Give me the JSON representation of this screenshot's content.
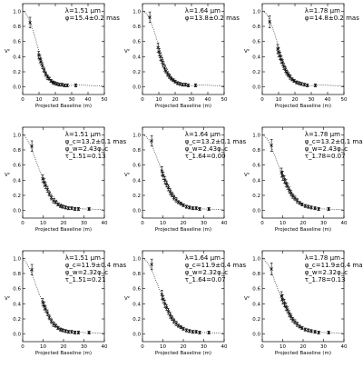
{
  "chart_data": [
    {
      "type": "scatter",
      "legend": [
        "λ=1.51 μm",
        "φ=15.4±0.2 mas"
      ],
      "xlabel": "Projected Baseline (m)",
      "ylabel": "V²",
      "xlim": [
        0,
        50
      ],
      "ylim": [
        -0.1,
        1.1
      ],
      "xticks": [
        0,
        10,
        20,
        30,
        40,
        50
      ],
      "yticks": [
        0.0,
        0.2,
        0.4,
        0.6,
        0.8,
        1.0
      ],
      "x": [
        4.5,
        9.8,
        10.6,
        11.2,
        12.1,
        13.0,
        14.0,
        15.1,
        16.2,
        17.3,
        18.5,
        19.6,
        21.0,
        22.4,
        24.0,
        25.6,
        27.3,
        32.5
      ],
      "y": [
        0.85,
        0.42,
        0.37,
        0.33,
        0.28,
        0.22,
        0.17,
        0.13,
        0.11,
        0.08,
        0.06,
        0.05,
        0.04,
        0.03,
        0.03,
        0.02,
        0.02,
        0.02
      ],
      "yerr": [
        0.07,
        0.05,
        0.05,
        0.04,
        0.04,
        0.03,
        0.03,
        0.03,
        0.02,
        0.02,
        0.02,
        0.02,
        0.02,
        0.02,
        0.02,
        0.02,
        0.02,
        0.02
      ],
      "model_x": [
        0,
        2,
        4,
        6,
        8,
        10,
        12,
        14,
        16,
        18,
        20,
        22,
        24,
        26,
        28,
        30,
        33,
        36,
        40,
        44,
        48,
        50
      ],
      "model_y": [
        1.0,
        0.97,
        0.89,
        0.77,
        0.62,
        0.47,
        0.33,
        0.21,
        0.12,
        0.06,
        0.03,
        0.015,
        0.01,
        0.012,
        0.016,
        0.02,
        0.024,
        0.024,
        0.02,
        0.016,
        0.012,
        0.011
      ]
    },
    {
      "type": "scatter",
      "legend": [
        "λ=1.64 μm",
        "φ=13.8±0.2 mas"
      ],
      "xlabel": "Projected Baseline (m)",
      "ylabel": "V²",
      "xlim": [
        0,
        50
      ],
      "ylim": [
        -0.1,
        1.1
      ],
      "xticks": [
        0,
        10,
        20,
        30,
        40,
        50
      ],
      "yticks": [
        0.0,
        0.2,
        0.4,
        0.6,
        0.8,
        1.0
      ],
      "x": [
        4.5,
        9.5,
        10.2,
        11.0,
        11.8,
        12.6,
        13.5,
        14.4,
        15.4,
        16.5,
        17.6,
        18.8,
        20.0,
        21.5,
        23.0,
        24.6,
        26.3,
        28.0,
        32.5
      ],
      "y": [
        0.92,
        0.52,
        0.46,
        0.4,
        0.35,
        0.3,
        0.25,
        0.21,
        0.17,
        0.14,
        0.11,
        0.09,
        0.07,
        0.05,
        0.04,
        0.03,
        0.03,
        0.02,
        0.02
      ],
      "yerr": [
        0.07,
        0.06,
        0.05,
        0.05,
        0.04,
        0.04,
        0.04,
        0.03,
        0.03,
        0.03,
        0.02,
        0.02,
        0.02,
        0.02,
        0.02,
        0.02,
        0.02,
        0.02,
        0.02
      ],
      "model_x": [
        0,
        2,
        4,
        6,
        8,
        10,
        12,
        14,
        16,
        18,
        20,
        22,
        24,
        26,
        28,
        30,
        33,
        36,
        40,
        44,
        48,
        50
      ],
      "model_y": [
        1.0,
        0.98,
        0.91,
        0.81,
        0.68,
        0.54,
        0.41,
        0.29,
        0.19,
        0.12,
        0.07,
        0.04,
        0.02,
        0.014,
        0.013,
        0.016,
        0.02,
        0.023,
        0.022,
        0.018,
        0.014,
        0.012
      ]
    },
    {
      "type": "scatter",
      "legend": [
        "λ=1.78 μm",
        "φ=14.8±0.2 mas"
      ],
      "xlabel": "Projected Baseline (m)",
      "ylabel": "V²",
      "xlim": [
        0,
        50
      ],
      "ylim": [
        -0.1,
        1.1
      ],
      "xticks": [
        0,
        10,
        20,
        30,
        40,
        50
      ],
      "yticks": [
        0.0,
        0.2,
        0.4,
        0.6,
        0.8,
        1.0
      ],
      "x": [
        4.5,
        9.4,
        10.0,
        10.8,
        11.6,
        12.4,
        13.2,
        14.1,
        15.0,
        16.0,
        17.1,
        18.3,
        19.5,
        21.0,
        22.5,
        24.0,
        25.8,
        27.6,
        32.5
      ],
      "y": [
        0.86,
        0.5,
        0.46,
        0.41,
        0.36,
        0.32,
        0.27,
        0.23,
        0.19,
        0.16,
        0.13,
        0.1,
        0.08,
        0.06,
        0.05,
        0.04,
        0.03,
        0.02,
        0.02
      ],
      "yerr": [
        0.08,
        0.06,
        0.06,
        0.05,
        0.05,
        0.04,
        0.04,
        0.04,
        0.03,
        0.03,
        0.03,
        0.02,
        0.02,
        0.02,
        0.02,
        0.02,
        0.02,
        0.02,
        0.02
      ],
      "model_x": [
        0,
        2,
        4,
        6,
        8,
        10,
        12,
        14,
        16,
        18,
        20,
        22,
        24,
        26,
        28,
        30,
        33,
        36,
        40,
        44,
        48,
        50
      ],
      "model_y": [
        1.0,
        0.98,
        0.91,
        0.8,
        0.67,
        0.53,
        0.4,
        0.28,
        0.19,
        0.12,
        0.07,
        0.04,
        0.022,
        0.015,
        0.014,
        0.017,
        0.021,
        0.023,
        0.022,
        0.018,
        0.014,
        0.012
      ]
    },
    {
      "type": "scatter",
      "legend": [
        "λ=1.51 μm",
        "φ_c=13.2±0.1 mas",
        "φ_w=2.43φ_c",
        "τ_1.51=0.13"
      ],
      "xlabel": "Projected Baseline (m)",
      "ylabel": "V²",
      "xlim": [
        0,
        40
      ],
      "ylim": [
        -0.1,
        1.1
      ],
      "xticks": [
        0,
        10,
        20,
        30,
        40
      ],
      "yticks": [
        0.0,
        0.2,
        0.4,
        0.6,
        0.8,
        1.0
      ],
      "x": [
        4.5,
        9.8,
        10.6,
        11.2,
        12.1,
        13.0,
        14.0,
        15.1,
        16.2,
        17.3,
        18.5,
        19.6,
        21.0,
        22.4,
        24.0,
        25.6,
        27.3,
        32.5
      ],
      "y": [
        0.85,
        0.42,
        0.37,
        0.33,
        0.28,
        0.22,
        0.17,
        0.13,
        0.11,
        0.08,
        0.06,
        0.05,
        0.04,
        0.03,
        0.03,
        0.02,
        0.02,
        0.02
      ],
      "yerr": [
        0.07,
        0.05,
        0.05,
        0.04,
        0.04,
        0.03,
        0.03,
        0.03,
        0.02,
        0.02,
        0.02,
        0.02,
        0.02,
        0.02,
        0.02,
        0.02,
        0.02,
        0.02
      ],
      "model_x": [
        0,
        1,
        2,
        3,
        4,
        5,
        6,
        8,
        10,
        12,
        14,
        16,
        18,
        20,
        22,
        24,
        26,
        28,
        30,
        33,
        36,
        40
      ],
      "model_y": [
        1.0,
        0.98,
        0.95,
        0.9,
        0.85,
        0.77,
        0.69,
        0.55,
        0.42,
        0.31,
        0.22,
        0.15,
        0.1,
        0.07,
        0.05,
        0.035,
        0.03,
        0.025,
        0.02,
        0.02,
        0.015,
        0.01
      ]
    },
    {
      "type": "scatter",
      "legend": [
        "λ=1.64 μm",
        "φ_c=13.2±0.1 mas",
        "φ_w=2.43φ_c",
        "τ_1.64=0.00"
      ],
      "xlabel": "Projected Baseline (m)",
      "ylabel": "V²",
      "xlim": [
        0,
        40
      ],
      "ylim": [
        -0.1,
        1.1
      ],
      "xticks": [
        0,
        10,
        20,
        30,
        40
      ],
      "yticks": [
        0.0,
        0.2,
        0.4,
        0.6,
        0.8,
        1.0
      ],
      "x": [
        4.5,
        9.5,
        10.2,
        11.0,
        11.8,
        12.6,
        13.5,
        14.4,
        15.4,
        16.5,
        17.6,
        18.8,
        20.0,
        21.5,
        23.0,
        24.6,
        26.3,
        28.0,
        32.5
      ],
      "y": [
        0.92,
        0.52,
        0.46,
        0.4,
        0.35,
        0.3,
        0.25,
        0.21,
        0.17,
        0.14,
        0.11,
        0.09,
        0.07,
        0.05,
        0.04,
        0.03,
        0.03,
        0.02,
        0.02
      ],
      "yerr": [
        0.07,
        0.06,
        0.05,
        0.05,
        0.04,
        0.04,
        0.04,
        0.03,
        0.03,
        0.03,
        0.02,
        0.02,
        0.02,
        0.02,
        0.02,
        0.02,
        0.02,
        0.02,
        0.02
      ],
      "model_x": [
        0,
        1,
        2,
        3,
        4,
        5,
        6,
        8,
        10,
        12,
        14,
        16,
        18,
        20,
        22,
        24,
        26,
        28,
        30,
        33,
        36,
        40
      ],
      "model_y": [
        1.0,
        0.99,
        0.97,
        0.94,
        0.9,
        0.84,
        0.77,
        0.63,
        0.49,
        0.37,
        0.27,
        0.18,
        0.12,
        0.08,
        0.05,
        0.035,
        0.028,
        0.024,
        0.02,
        0.018,
        0.015,
        0.012
      ]
    },
    {
      "type": "scatter",
      "legend": [
        "λ=1.78 μm",
        "φ_c=13.2±0.1 mas",
        "φ_w=2.43φ_c",
        "τ_1.78=0.07"
      ],
      "xlabel": "Projected Baseline (m)",
      "ylabel": "V²",
      "xlim": [
        0,
        40
      ],
      "ylim": [
        -0.1,
        1.1
      ],
      "xticks": [
        0,
        10,
        20,
        30,
        40
      ],
      "yticks": [
        0.0,
        0.2,
        0.4,
        0.6,
        0.8,
        1.0
      ],
      "x": [
        4.5,
        9.4,
        10.0,
        10.8,
        11.6,
        12.4,
        13.2,
        14.1,
        15.0,
        16.0,
        17.1,
        18.3,
        19.5,
        21.0,
        22.5,
        24.0,
        25.8,
        27.6,
        32.5
      ],
      "y": [
        0.86,
        0.5,
        0.46,
        0.41,
        0.36,
        0.32,
        0.27,
        0.23,
        0.19,
        0.16,
        0.13,
        0.1,
        0.08,
        0.06,
        0.05,
        0.04,
        0.03,
        0.02,
        0.02
      ],
      "yerr": [
        0.08,
        0.06,
        0.06,
        0.05,
        0.05,
        0.04,
        0.04,
        0.04,
        0.03,
        0.03,
        0.03,
        0.02,
        0.02,
        0.02,
        0.02,
        0.02,
        0.02,
        0.02,
        0.02
      ],
      "model_x": [
        0,
        1,
        2,
        3,
        4,
        5,
        6,
        8,
        10,
        12,
        14,
        16,
        18,
        20,
        22,
        24,
        26,
        28,
        30,
        33,
        36,
        40
      ],
      "model_y": [
        1.0,
        0.98,
        0.96,
        0.92,
        0.87,
        0.8,
        0.73,
        0.59,
        0.46,
        0.34,
        0.25,
        0.17,
        0.11,
        0.075,
        0.05,
        0.035,
        0.028,
        0.024,
        0.02,
        0.018,
        0.015,
        0.012
      ]
    },
    {
      "type": "scatter",
      "legend": [
        "λ=1.51 μm",
        "φ_c=11.9±0.4 mas",
        "φ_w=2.32φ_c",
        "τ_1.51=0.21"
      ],
      "xlabel": "Projected Baseline (m)",
      "ylabel": "V²",
      "xlim": [
        0,
        40
      ],
      "ylim": [
        -0.1,
        1.1
      ],
      "xticks": [
        0,
        10,
        20,
        30,
        40
      ],
      "yticks": [
        0.0,
        0.2,
        0.4,
        0.6,
        0.8,
        1.0
      ],
      "x": [
        4.5,
        9.8,
        10.6,
        11.2,
        12.1,
        13.0,
        14.0,
        15.1,
        16.2,
        17.3,
        18.5,
        19.6,
        21.0,
        22.4,
        24.0,
        25.6,
        27.3,
        32.5
      ],
      "y": [
        0.85,
        0.42,
        0.37,
        0.33,
        0.28,
        0.22,
        0.17,
        0.13,
        0.11,
        0.08,
        0.06,
        0.05,
        0.04,
        0.03,
        0.03,
        0.02,
        0.02,
        0.02
      ],
      "yerr": [
        0.07,
        0.05,
        0.05,
        0.04,
        0.04,
        0.03,
        0.03,
        0.03,
        0.02,
        0.02,
        0.02,
        0.02,
        0.02,
        0.02,
        0.02,
        0.02,
        0.02,
        0.02
      ],
      "model_x": [
        0,
        1,
        2,
        3,
        4,
        5,
        6,
        8,
        10,
        12,
        14,
        16,
        18,
        20,
        22,
        24,
        26,
        28,
        30,
        33,
        36,
        40
      ],
      "model_y": [
        1.0,
        0.97,
        0.93,
        0.88,
        0.83,
        0.76,
        0.68,
        0.54,
        0.41,
        0.3,
        0.21,
        0.14,
        0.09,
        0.06,
        0.045,
        0.035,
        0.03,
        0.025,
        0.02,
        0.018,
        0.015,
        0.012
      ]
    },
    {
      "type": "scatter",
      "legend": [
        "λ=1.64 μm",
        "φ_c=11.9±0.4 mas",
        "φ_w=2.32φ_c",
        "τ_1.64=0.07"
      ],
      "xlabel": "Projected Baseline (m)",
      "ylabel": "V²",
      "xlim": [
        0,
        40
      ],
      "ylim": [
        -0.1,
        1.1
      ],
      "xticks": [
        0,
        10,
        20,
        30,
        40
      ],
      "yticks": [
        0.0,
        0.2,
        0.4,
        0.6,
        0.8,
        1.0
      ],
      "x": [
        4.5,
        9.5,
        10.2,
        11.0,
        11.8,
        12.6,
        13.5,
        14.4,
        15.4,
        16.5,
        17.6,
        18.8,
        20.0,
        21.5,
        23.0,
        24.6,
        26.3,
        28.0,
        32.5
      ],
      "y": [
        0.92,
        0.52,
        0.46,
        0.4,
        0.35,
        0.3,
        0.25,
        0.21,
        0.17,
        0.14,
        0.11,
        0.09,
        0.07,
        0.05,
        0.04,
        0.03,
        0.03,
        0.02,
        0.02
      ],
      "yerr": [
        0.07,
        0.06,
        0.05,
        0.05,
        0.04,
        0.04,
        0.04,
        0.03,
        0.03,
        0.03,
        0.02,
        0.02,
        0.02,
        0.02,
        0.02,
        0.02,
        0.02,
        0.02,
        0.02
      ],
      "model_x": [
        0,
        1,
        2,
        3,
        4,
        5,
        6,
        8,
        10,
        12,
        14,
        16,
        18,
        20,
        22,
        24,
        26,
        28,
        30,
        33,
        36,
        40
      ],
      "model_y": [
        1.0,
        0.99,
        0.96,
        0.93,
        0.88,
        0.82,
        0.75,
        0.61,
        0.48,
        0.36,
        0.26,
        0.18,
        0.12,
        0.08,
        0.055,
        0.04,
        0.03,
        0.025,
        0.02,
        0.018,
        0.015,
        0.012
      ]
    },
    {
      "type": "scatter",
      "legend": [
        "λ=1.78 μm",
        "φ_c=11.9±0.4 mas",
        "φ_w=2.32φ_c",
        "τ_1.78=0.13"
      ],
      "xlabel": "Projected Baseline (m)",
      "ylabel": "V²",
      "xlim": [
        0,
        40
      ],
      "ylim": [
        -0.1,
        1.1
      ],
      "xticks": [
        0,
        10,
        20,
        30,
        40
      ],
      "yticks": [
        0.0,
        0.2,
        0.4,
        0.6,
        0.8,
        1.0
      ],
      "x": [
        4.5,
        9.4,
        10.0,
        10.8,
        11.6,
        12.4,
        13.2,
        14.1,
        15.0,
        16.0,
        17.1,
        18.3,
        19.5,
        21.0,
        22.5,
        24.0,
        25.8,
        27.6,
        32.5
      ],
      "y": [
        0.86,
        0.5,
        0.46,
        0.41,
        0.36,
        0.32,
        0.27,
        0.23,
        0.19,
        0.16,
        0.13,
        0.1,
        0.08,
        0.06,
        0.05,
        0.04,
        0.03,
        0.02,
        0.02
      ],
      "yerr": [
        0.08,
        0.06,
        0.06,
        0.05,
        0.05,
        0.04,
        0.04,
        0.04,
        0.03,
        0.03,
        0.03,
        0.02,
        0.02,
        0.02,
        0.02,
        0.02,
        0.02,
        0.02,
        0.02
      ],
      "model_x": [
        0,
        1,
        2,
        3,
        4,
        5,
        6,
        8,
        10,
        12,
        14,
        16,
        18,
        20,
        22,
        24,
        26,
        28,
        30,
        33,
        36,
        40
      ],
      "model_y": [
        1.0,
        0.98,
        0.95,
        0.91,
        0.86,
        0.79,
        0.71,
        0.57,
        0.44,
        0.33,
        0.24,
        0.16,
        0.11,
        0.07,
        0.05,
        0.037,
        0.03,
        0.025,
        0.02,
        0.018,
        0.015,
        0.012
      ]
    }
  ]
}
